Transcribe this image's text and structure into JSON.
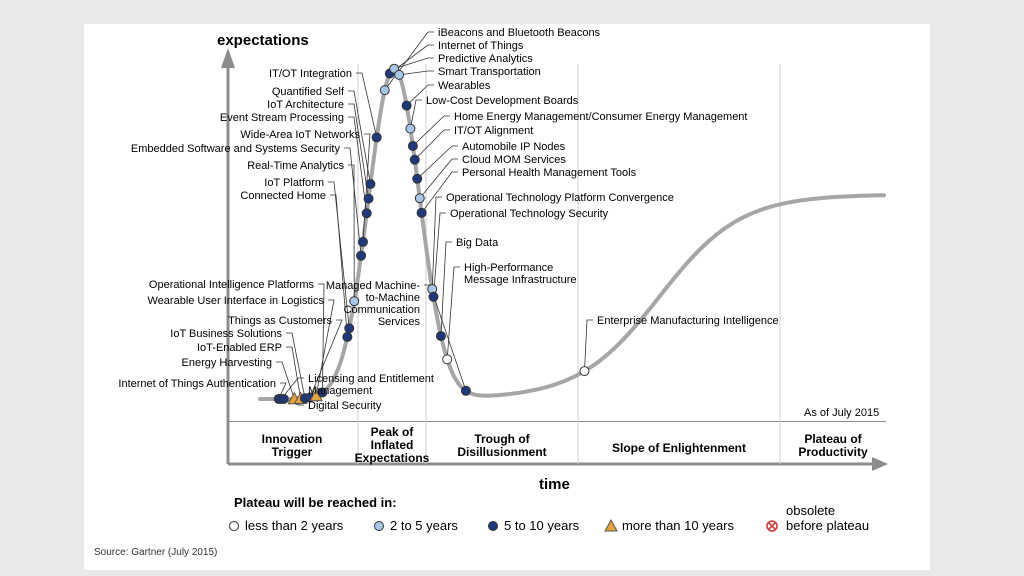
{
  "colors": {
    "background": "#e9e9e9",
    "slide": "#ffffff",
    "curve": "#a6a6a6",
    "dark_dot": "#1f3a7a",
    "light_dot": "#a7c6e8",
    "triangle": "#e8a23a",
    "obsolete": "#d43b3b"
  },
  "chart_data": {
    "type": "hype-cycle",
    "title": "",
    "ylabel": "expectations",
    "xlabel": "time",
    "as_of": "As of July 2015",
    "source": "Source: Gartner (July 2015)",
    "phases": [
      {
        "lines": [
          "Innovation",
          "Trigger"
        ]
      },
      {
        "lines": [
          "Peak of",
          "Inflated",
          "Expectations"
        ]
      },
      {
        "lines": [
          "Trough of",
          "Disillusionment"
        ]
      },
      {
        "lines": [
          "Slope of Enlightenment"
        ]
      },
      {
        "lines": [
          "Plateau of",
          "Productivity"
        ]
      }
    ],
    "legend": {
      "title": "Plateau will be reached in:",
      "items": [
        {
          "key": "lt2",
          "label": "less than 2 years"
        },
        {
          "key": "2to5",
          "label": "2 to 5 years"
        },
        {
          "key": "5to10",
          "label": "5 to 10 years"
        },
        {
          "key": "gt10",
          "label": "more than 10 years"
        },
        {
          "key": "obsolete",
          "label_lines": [
            "obsolete",
            "before plateau"
          ]
        }
      ]
    },
    "technologies": [
      {
        "lines": [
          "Internet of Things Authentication"
        ],
        "t": 0.03,
        "cat": "5to10"
      },
      {
        "lines": [
          "Licensing and Entitlement",
          "Management"
        ],
        "t": 0.034,
        "cat": "5to10"
      },
      {
        "lines": [
          "Digital Security"
        ],
        "t": 0.038,
        "cat": "5to10"
      },
      {
        "lines": [
          "Energy Harvesting"
        ],
        "t": 0.055,
        "cat": "gt10"
      },
      {
        "lines": [
          "IoT-Enabled ERP"
        ],
        "t": 0.065,
        "cat": "gt10"
      },
      {
        "lines": [
          "IoT Business Solutions"
        ],
        "t": 0.072,
        "cat": "5to10"
      },
      {
        "lines": [
          "Things as Customers"
        ],
        "t": 0.08,
        "cat": "5to10"
      },
      {
        "lines": [
          "Wearable User Interface in Logistics"
        ],
        "t": 0.09,
        "cat": "gt10"
      },
      {
        "lines": [
          "Operational Intelligence Platforms"
        ],
        "t": 0.1,
        "cat": "5to10"
      },
      {
        "lines": [
          "Connected Home"
        ],
        "t": 0.14,
        "cat": "5to10"
      },
      {
        "lines": [
          "IoT Platform"
        ],
        "t": 0.143,
        "cat": "5to10"
      },
      {
        "lines": [
          "Real-Time Analytics"
        ],
        "t": 0.151,
        "cat": "2to5"
      },
      {
        "lines": [
          "Embedded Software and Systems Security"
        ],
        "t": 0.162,
        "cat": "5to10"
      },
      {
        "lines": [
          "Wide-Area IoT Networks"
        ],
        "t": 0.165,
        "cat": "5to10"
      },
      {
        "lines": [
          "Event Stream Processing"
        ],
        "t": 0.171,
        "cat": "5to10"
      },
      {
        "lines": [
          "IoT Architecture"
        ],
        "t": 0.174,
        "cat": "5to10"
      },
      {
        "lines": [
          "Quantified Self"
        ],
        "t": 0.177,
        "cat": "5to10"
      },
      {
        "lines": [
          "IT/OT Integration"
        ],
        "t": 0.187,
        "cat": "5to10"
      },
      {
        "lines": [
          "iBeacons and Bluetooth Beacons"
        ],
        "t": 0.2,
        "cat": "2to5"
      },
      {
        "lines": [
          "Internet of Things"
        ],
        "t": 0.208,
        "cat": "5to10"
      },
      {
        "lines": [
          "Predictive Analytics"
        ],
        "t": 0.215,
        "cat": "2to5"
      },
      {
        "lines": [
          "Smart Transportation"
        ],
        "t": 0.223,
        "cat": "2to5"
      },
      {
        "lines": [
          "Wearables"
        ],
        "t": 0.235,
        "cat": "5to10"
      },
      {
        "lines": [
          "Low-Cost Development Boards"
        ],
        "t": 0.241,
        "cat": "2to5"
      },
      {
        "lines": [
          "Home Energy Management/Consumer Energy Management"
        ],
        "t": 0.245,
        "cat": "5to10"
      },
      {
        "lines": [
          "IT/OT Alignment"
        ],
        "t": 0.248,
        "cat": "5to10"
      },
      {
        "lines": [
          "Automobile IP Nodes"
        ],
        "t": 0.252,
        "cat": "5to10"
      },
      {
        "lines": [
          "Cloud MOM Services"
        ],
        "t": 0.256,
        "cat": "2to5"
      },
      {
        "lines": [
          "Personal Health Management Tools"
        ],
        "t": 0.259,
        "cat": "5to10"
      },
      {
        "lines": [
          "Operational Technology Platform Convergence"
        ],
        "t": 0.276,
        "cat": "2to5"
      },
      {
        "lines": [
          "Operational Technology Security"
        ],
        "t": 0.278,
        "cat": "5to10"
      },
      {
        "lines": [
          "Big Data"
        ],
        "t": 0.29,
        "cat": "5to10"
      },
      {
        "lines": [
          "High-Performance",
          "Message Infrastructure"
        ],
        "t": 0.3,
        "cat": "lt2"
      },
      {
        "lines": [
          "Managed Machine-",
          "to-Machine",
          "Communication",
          "Services"
        ],
        "t": 0.33,
        "cat": "5to10"
      },
      {
        "lines": [
          "Enterprise Manufacturing Intelligence"
        ],
        "t": 0.52,
        "cat": "lt2"
      }
    ]
  }
}
